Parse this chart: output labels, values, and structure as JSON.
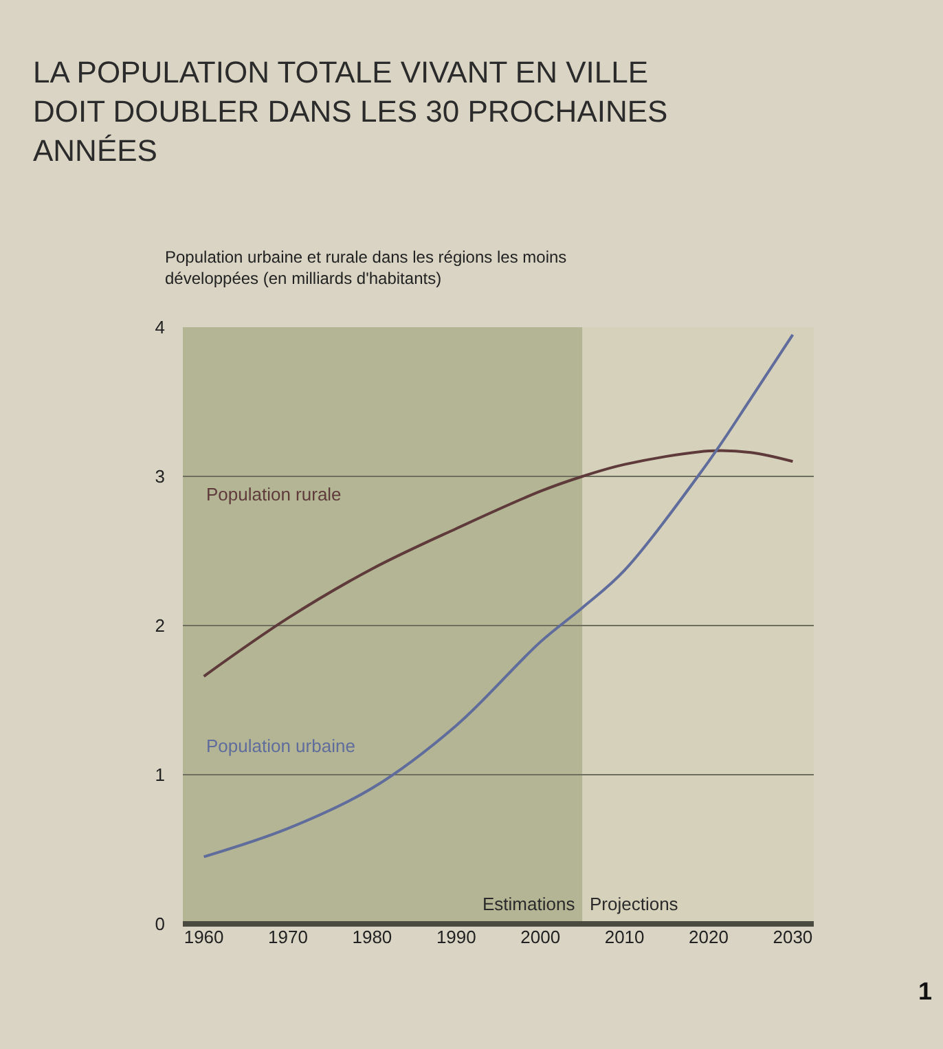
{
  "chart_data": {
    "type": "line",
    "title": "LA POPULATION TOTALE VIVANT EN VILLE DOIT DOUBLER DANS LES 30 PROCHAINES ANNÉES",
    "ylabel": "Population urbaine et rurale dans les régions les moins développées (en milliards d'habitants)",
    "x": [
      1960,
      1970,
      1980,
      1990,
      2000,
      2005,
      2010,
      2020,
      2025,
      2030
    ],
    "series": [
      {
        "name": "Population rurale",
        "color": "#5e3a3a",
        "values": [
          1.66,
          2.05,
          2.38,
          2.65,
          2.9,
          3.0,
          3.08,
          3.17,
          3.16,
          3.1
        ]
      },
      {
        "name": "Population urbaine",
        "color": "#5f6c9c",
        "values": [
          0.45,
          0.64,
          0.91,
          1.33,
          1.89,
          2.12,
          2.37,
          3.1,
          3.52,
          3.95
        ]
      }
    ],
    "xlim": [
      1957.5,
      2032.5
    ],
    "xticks": [
      1960,
      1970,
      1980,
      1990,
      2000,
      2010,
      2020,
      2030
    ],
    "ylim": [
      0,
      4
    ],
    "yticks": [
      0,
      1,
      2,
      3,
      4
    ],
    "bands": [
      {
        "axis": "x",
        "from": 1957.5,
        "to": 2005,
        "label": "Estimations",
        "color": "#b3b594"
      },
      {
        "axis": "x",
        "from": 2005,
        "to": 2032.5,
        "label": "Projections",
        "color": "#d6d1bb"
      }
    ],
    "annotations": [
      "1"
    ],
    "grid": "y",
    "legend": false,
    "marker": "none",
    "line_style": "solid"
  }
}
